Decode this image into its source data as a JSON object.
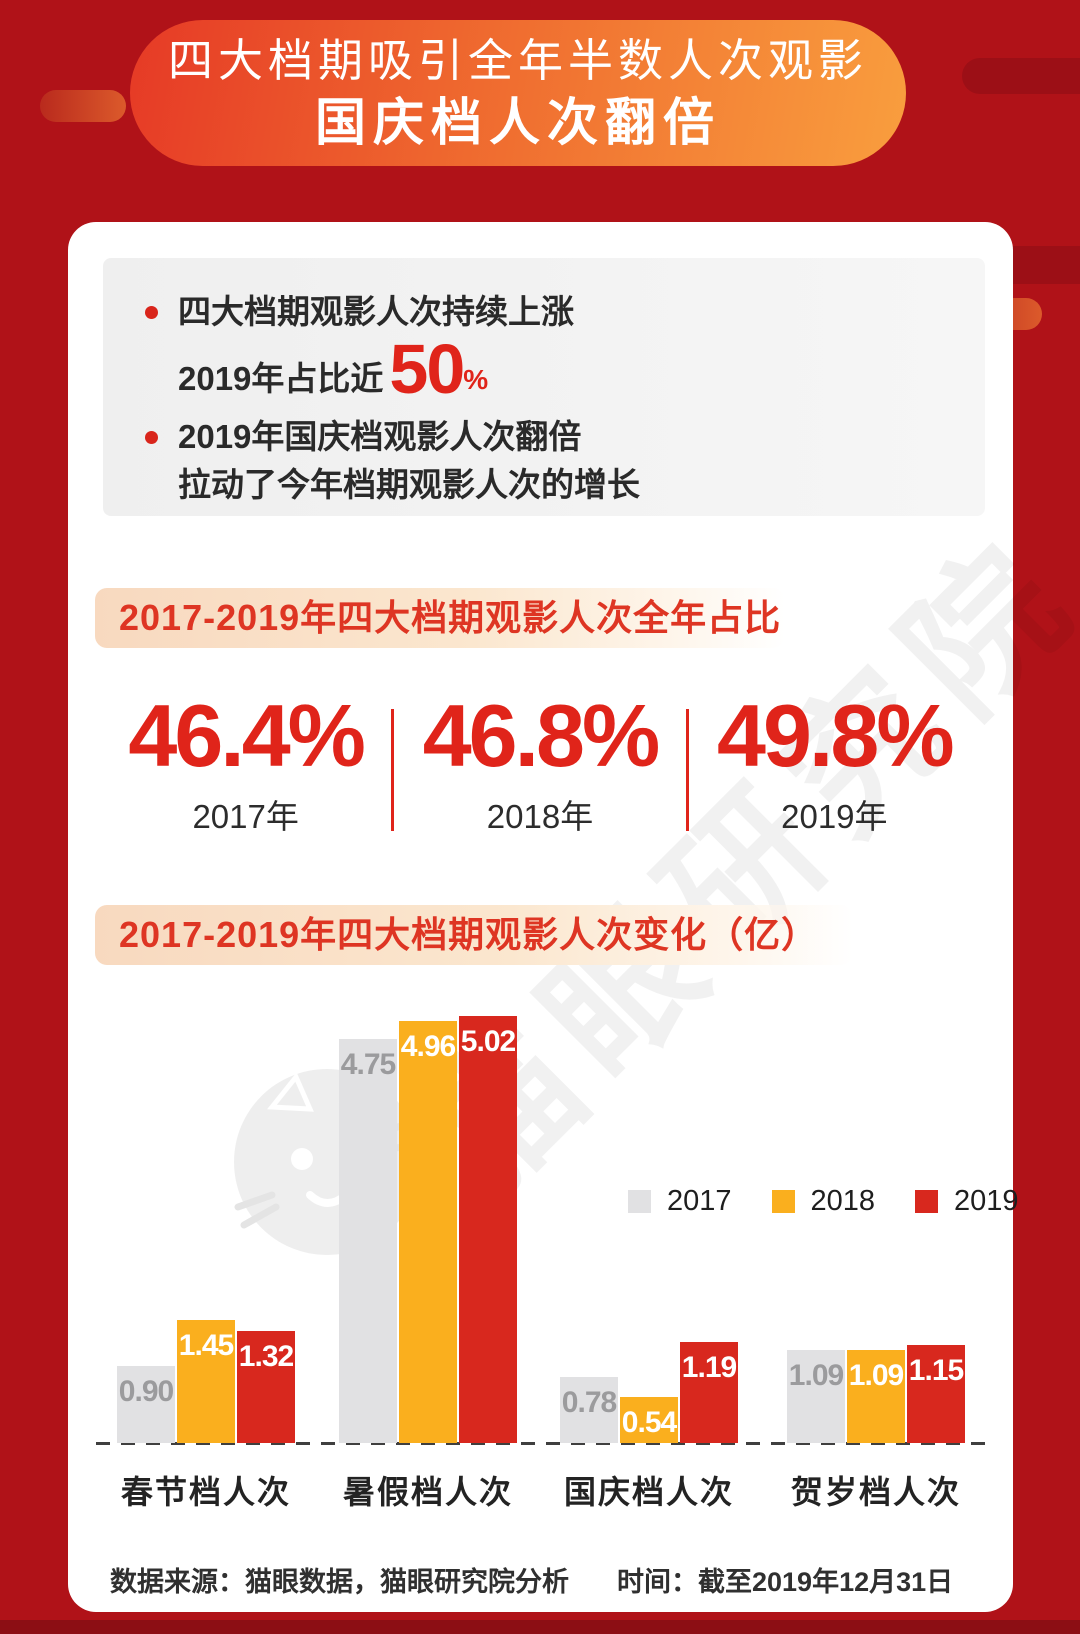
{
  "banner": {
    "title_line1": "四大档期吸引全年半数人次观影",
    "title_line2": "国庆档人次翻倍"
  },
  "highlights": {
    "bullet1_line1": "四大档期观影人次持续上涨",
    "bullet1_line2_prefix": "2019年占比近",
    "bullet1_big_number": "50",
    "bullet1_percent_sign": "%",
    "bullet2_line1": "2019年国庆档观影人次翻倍",
    "bullet2_line2": "拉动了今年档期观影人次的增长"
  },
  "share_section": {
    "header": "2017-2019年四大档期观影人次全年占比",
    "items": [
      {
        "value": "46.4%",
        "year": "2017年"
      },
      {
        "value": "46.8%",
        "year": "2018年"
      },
      {
        "value": "49.8%",
        "year": "2019年"
      }
    ]
  },
  "chart_section": {
    "header": "2017-2019年四大档期观影人次变化（亿）"
  },
  "chart_data": {
    "type": "bar",
    "title": "2017-2019年四大档期观影人次变化（亿）",
    "categories": [
      "春节档人次",
      "暑假档人次",
      "国庆档人次",
      "贺岁档人次"
    ],
    "series": [
      {
        "name": "2017",
        "color": "#E1E1E3",
        "values": [
          0.9,
          4.75,
          0.78,
          1.09
        ]
      },
      {
        "name": "2018",
        "color": "#FAAF1E",
        "values": [
          1.45,
          4.96,
          0.54,
          1.09
        ]
      },
      {
        "name": "2019",
        "color": "#D8281E",
        "values": [
          1.32,
          5.02,
          1.19,
          1.15
        ]
      }
    ],
    "ylim": [
      0,
      5.2
    ],
    "value_label_decimals": 2,
    "grid": false,
    "legend_position": "middle-right"
  },
  "watermark": {
    "text": "猫眼研究院",
    "logo": "maoyan-cat-logo"
  },
  "footer": {
    "source": "数据来源：猫眼数据，猫眼研究院分析",
    "time": "时间：截至2019年12月31日"
  },
  "colors": {
    "background": "#B01218",
    "accent_red": "#E0241A",
    "bar_gray": "#E1E1E3",
    "bar_orange": "#FAAF1E",
    "bar_red": "#D8281E"
  }
}
